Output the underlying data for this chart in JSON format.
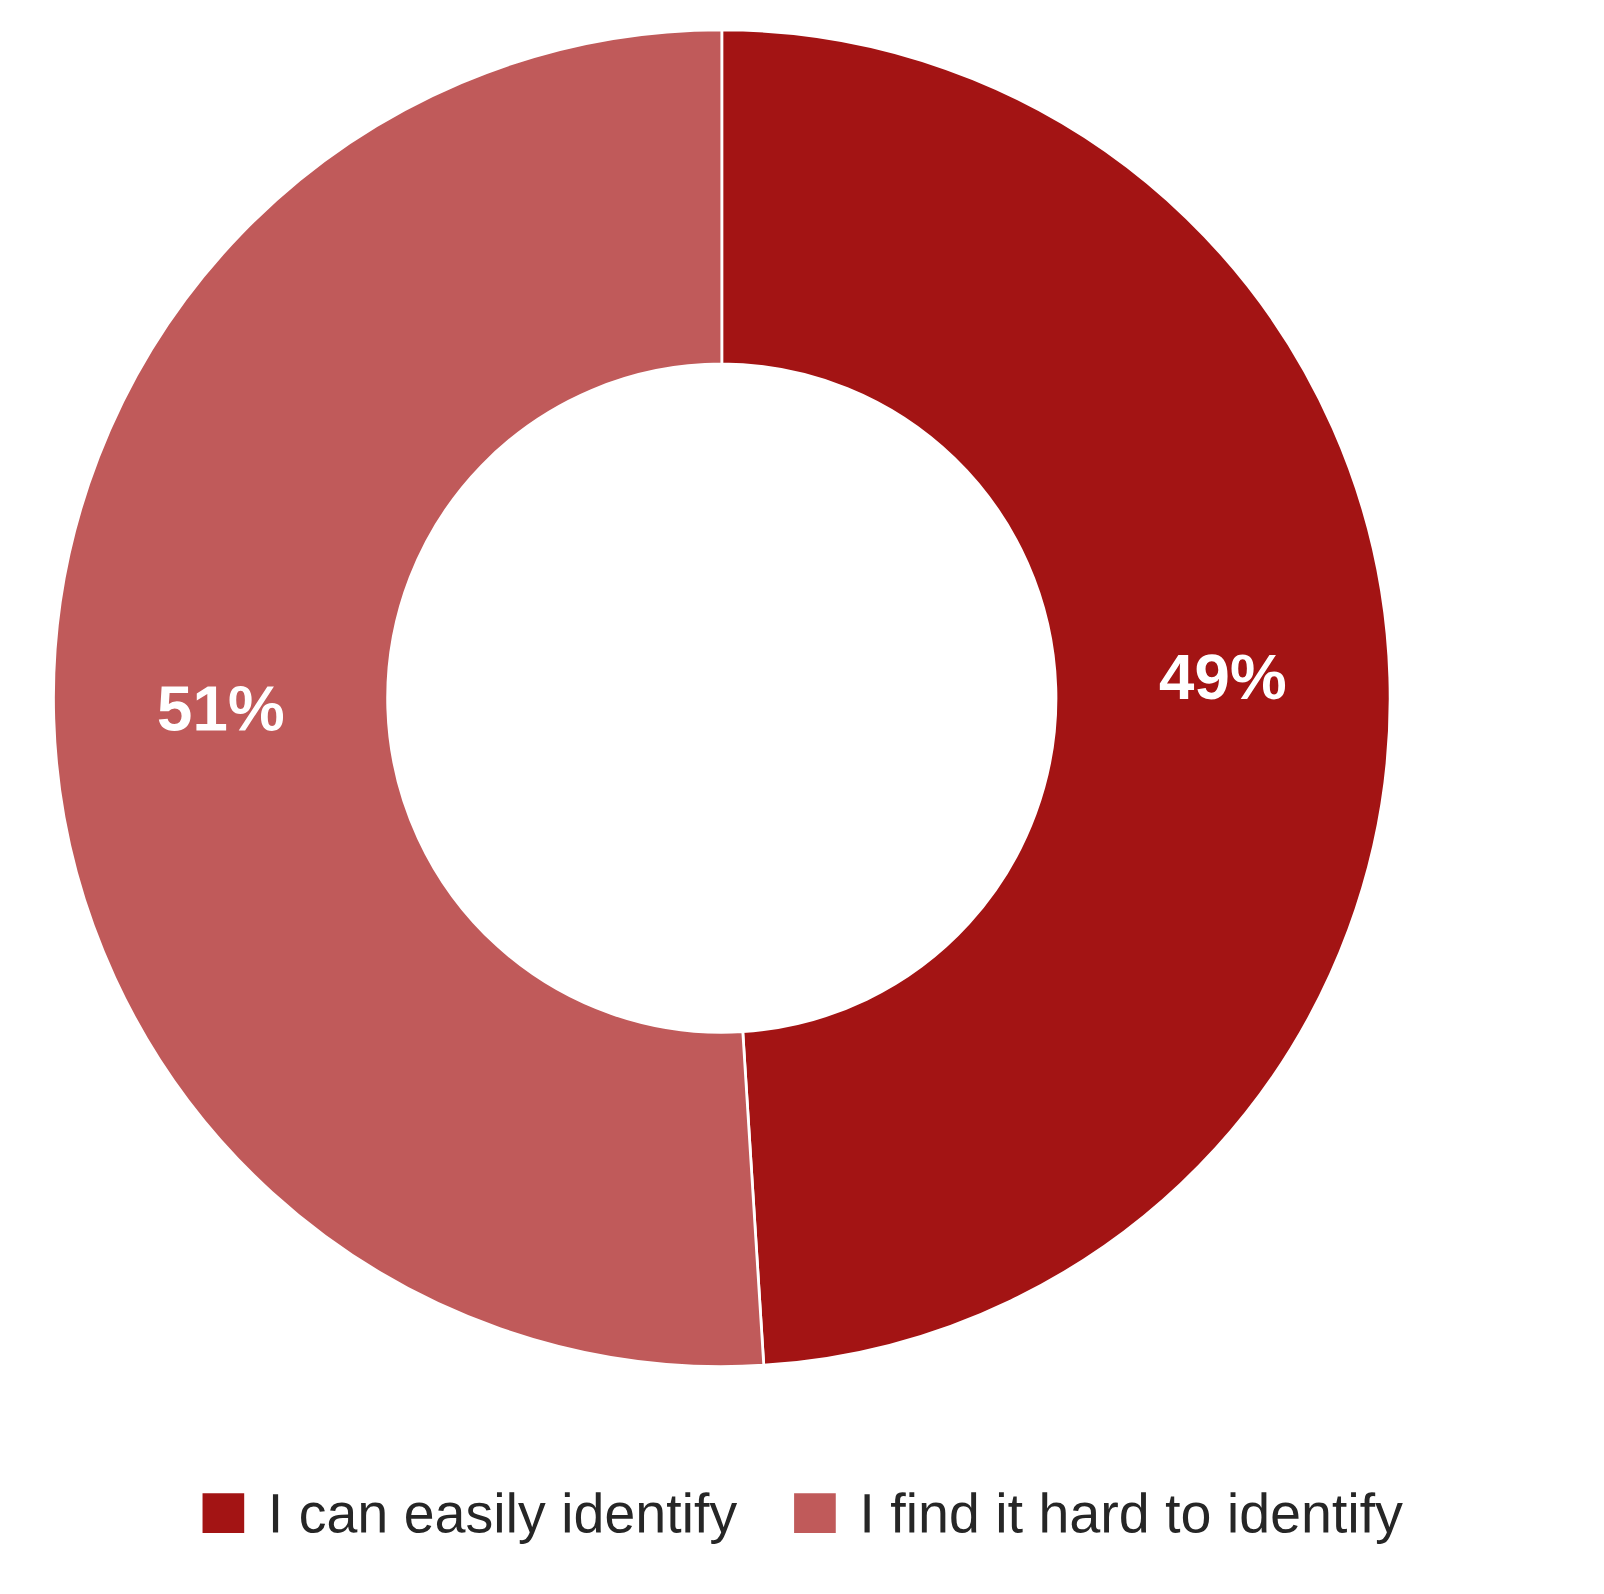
{
  "chart_data": {
    "type": "donut",
    "categories": [
      "I can easily identify",
      "I find it hard to identify"
    ],
    "values": [
      49,
      51
    ],
    "colors": [
      "#a31414",
      "#c05a5a"
    ],
    "value_labels": [
      "49%",
      "51%"
    ],
    "legend": "bottom"
  }
}
